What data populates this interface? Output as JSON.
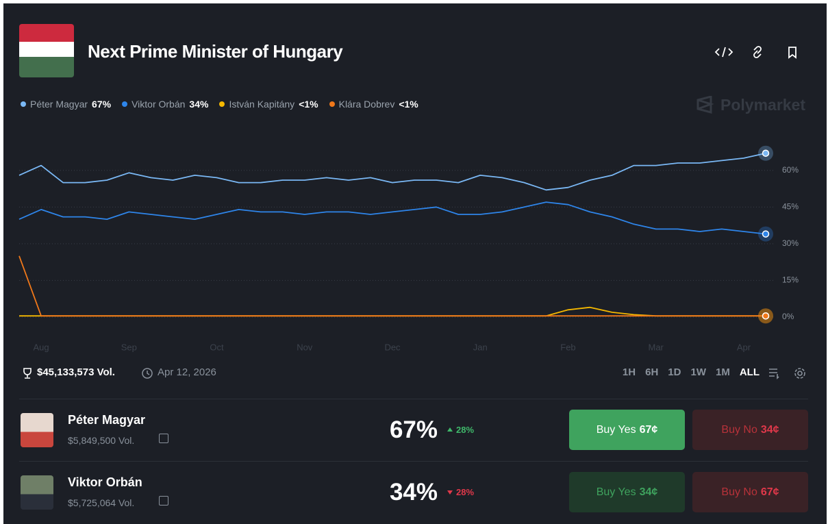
{
  "header": {
    "title": "Next Prime Minister of Hungary"
  },
  "watermark": "Polymarket",
  "chart_data": {
    "type": "line",
    "categories": [
      null,
      "Aug",
      null,
      null,
      null,
      "Sep",
      null,
      null,
      null,
      "Oct",
      null,
      null,
      null,
      "Nov",
      null,
      null,
      null,
      "Dec",
      null,
      null,
      null,
      "Jan",
      null,
      null,
      null,
      "Feb",
      null,
      null,
      null,
      "Mar",
      null,
      null,
      null,
      "Apr",
      null
    ],
    "series": [
      {
        "name": "Péter Magyar",
        "legend_value": "67%",
        "color": "#7ab8f5",
        "values": [
          58,
          62,
          55,
          55,
          56,
          59,
          57,
          56,
          58,
          57,
          55,
          55,
          56,
          56,
          57,
          56,
          57,
          55,
          56,
          56,
          55,
          58,
          57,
          55,
          52,
          53,
          56,
          58,
          62,
          62,
          63,
          63,
          64,
          65,
          67
        ]
      },
      {
        "name": "Viktor Orbán",
        "legend_value": "34%",
        "color": "#2e85ea",
        "values": [
          40,
          44,
          41,
          41,
          40,
          43,
          42,
          41,
          40,
          42,
          44,
          43,
          43,
          42,
          43,
          43,
          42,
          43,
          44,
          45,
          42,
          42,
          43,
          45,
          47,
          46,
          43,
          41,
          38,
          36,
          36,
          35,
          36,
          35,
          34
        ]
      },
      {
        "name": "István Kapitány",
        "legend_value": "<1%",
        "color": "#f5b800",
        "values": [
          0.5,
          0.5,
          0.5,
          0.5,
          0.5,
          0.5,
          0.5,
          0.5,
          0.5,
          0.5,
          0.5,
          0.5,
          0.5,
          0.5,
          0.5,
          0.5,
          0.5,
          0.5,
          0.5,
          0.5,
          0.5,
          0.5,
          0.5,
          0.5,
          0.5,
          3,
          4,
          2,
          1,
          0.5,
          0.5,
          0.5,
          0.5,
          0.5,
          0.5
        ]
      },
      {
        "name": "Klára Dobrev",
        "legend_value": "<1%",
        "color": "#f0781a",
        "values": [
          25,
          0.5,
          0.5,
          0.5,
          0.5,
          0.5,
          0.5,
          0.5,
          0.5,
          0.5,
          0.5,
          0.5,
          0.5,
          0.5,
          0.5,
          0.5,
          0.5,
          0.5,
          0.5,
          0.5,
          0.5,
          0.5,
          0.5,
          0.5,
          0.5,
          0.5,
          0.5,
          0.5,
          0.5,
          0.5,
          0.5,
          0.5,
          0.5,
          0.5,
          0.5
        ]
      }
    ],
    "ylim": [
      0,
      70
    ],
    "yticks": [
      {
        "value": 0,
        "label": "0%"
      },
      {
        "value": 15,
        "label": "15%"
      },
      {
        "value": 30,
        "label": "30%"
      },
      {
        "value": 45,
        "label": "45%"
      },
      {
        "value": 60,
        "label": "60%"
      }
    ],
    "grid": true
  },
  "footer": {
    "volume": "$45,133,573 Vol.",
    "end_date": "Apr 12, 2026",
    "ranges": [
      "1H",
      "6H",
      "1D",
      "1W",
      "1M",
      "ALL"
    ]
  },
  "outcomes": [
    {
      "name": "Péter Magyar",
      "volume": "$5,849,500 Vol.",
      "chance": "67%",
      "change": "28%",
      "buy_yes_label": "Buy Yes",
      "buy_yes_price": "67¢",
      "buy_no_label": "Buy No",
      "buy_no_price": "34¢"
    },
    {
      "name": "Viktor Orbán",
      "volume": "$5,725,064 Vol.",
      "chance": "34%",
      "change": "28%",
      "buy_yes_label": "Buy Yes",
      "buy_yes_price": "34¢",
      "buy_no_label": "Buy No",
      "buy_no_price": "67¢"
    }
  ]
}
